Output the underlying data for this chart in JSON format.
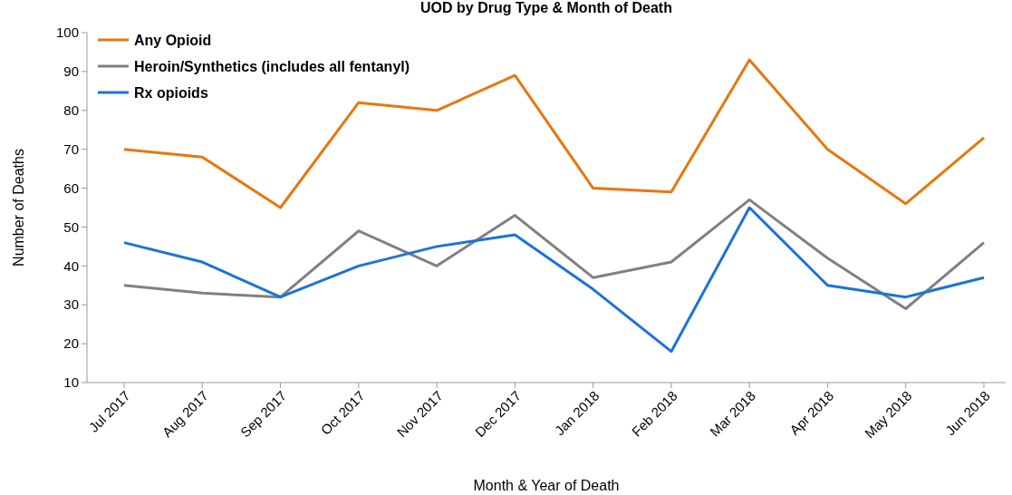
{
  "chart_data": {
    "type": "line",
    "title": "UOD by Drug Type & Month of Death",
    "xlabel": "Month & Year of Death",
    "ylabel": "Number of Deaths",
    "categories": [
      "Jul 2017",
      "Aug 2017",
      "Sep 2017",
      "Oct 2017",
      "Nov 2017",
      "Dec 2017",
      "Jan 2018",
      "Feb 2018",
      "Mar 2018",
      "Apr 2018",
      "May 2018",
      "Jun 2018"
    ],
    "series": [
      {
        "name": "Any Opioid",
        "color": "#e8770e",
        "values": [
          70,
          68,
          55,
          82,
          80,
          89,
          60,
          59,
          93,
          70,
          56,
          73
        ]
      },
      {
        "name": "Heroin/Synthetics (includes all fentanyl)",
        "color": "#808080",
        "values": [
          35,
          33,
          32,
          49,
          40,
          53,
          37,
          41,
          57,
          42,
          29,
          46
        ]
      },
      {
        "name": "Rx opioids",
        "color": "#1a73d9",
        "values": [
          46,
          41,
          32,
          40,
          45,
          48,
          34,
          18,
          55,
          35,
          32,
          37
        ]
      }
    ],
    "ylim": [
      10,
      100
    ],
    "yticks": [
      10,
      20,
      30,
      40,
      50,
      60,
      70,
      80,
      90,
      100
    ],
    "grid": false,
    "legend": "top left",
    "marker": "none",
    "line_style": "solid"
  }
}
